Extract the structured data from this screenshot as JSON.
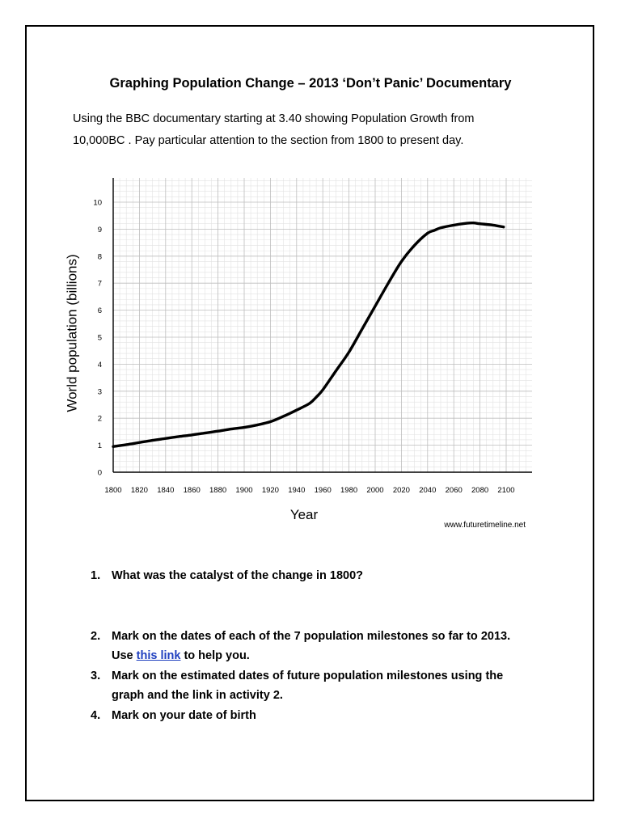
{
  "document": {
    "title": "Graphing Population Change – 2013 ‘Don’t Panic’ Documentary",
    "intro_line1": "Using the BBC documentary starting at 3.40 showing Population Growth from",
    "intro_line2": "10,000BC . Pay particular attention to the section from 1800 to present day."
  },
  "chart_data": {
    "type": "line",
    "xlabel": "Year",
    "ylabel": "World population (billions)",
    "source": "www.futuretimeline.net",
    "xlim": [
      1800,
      2100
    ],
    "ylim": [
      0,
      10
    ],
    "x_ticks": [
      1800,
      1820,
      1840,
      1860,
      1880,
      1900,
      1920,
      1940,
      1960,
      1980,
      2000,
      2020,
      2040,
      2060,
      2080,
      2100
    ],
    "y_ticks": [
      0,
      1,
      2,
      3,
      4,
      5,
      6,
      7,
      8,
      9,
      10
    ],
    "grid": true,
    "series": [
      {
        "x": [
          1800,
          1810,
          1820,
          1830,
          1840,
          1850,
          1860,
          1870,
          1880,
          1890,
          1900,
          1910,
          1920,
          1930,
          1940,
          1950,
          1955,
          1960,
          1970,
          1980,
          1990,
          2000,
          2010,
          2020,
          2030,
          2040,
          2045,
          2050,
          2060,
          2070,
          2075,
          2080,
          2090,
          2098
        ],
        "values": [
          0.95,
          1.02,
          1.1,
          1.18,
          1.25,
          1.32,
          1.38,
          1.45,
          1.52,
          1.6,
          1.66,
          1.75,
          1.87,
          2.07,
          2.3,
          2.55,
          2.78,
          3.05,
          3.75,
          4.45,
          5.3,
          6.15,
          7.0,
          7.8,
          8.4,
          8.85,
          8.95,
          9.05,
          9.15,
          9.22,
          9.23,
          9.2,
          9.15,
          9.08
        ]
      }
    ]
  },
  "questions": [
    {
      "number": "1.",
      "text": "What was the catalyst of the change in 1800?"
    },
    {
      "number": "2.",
      "text_before": "Mark on the dates of each of the 7 population milestones so far to 2013.",
      "text_use": "Use ",
      "link_text": "this link",
      "text_after": " to help you."
    },
    {
      "number": "3.",
      "text": "Mark on the estimated dates of future population milestones using the",
      "text_line2": "graph and the link in activity 2."
    },
    {
      "number": "4.",
      "text": "Mark on your date of birth"
    }
  ]
}
